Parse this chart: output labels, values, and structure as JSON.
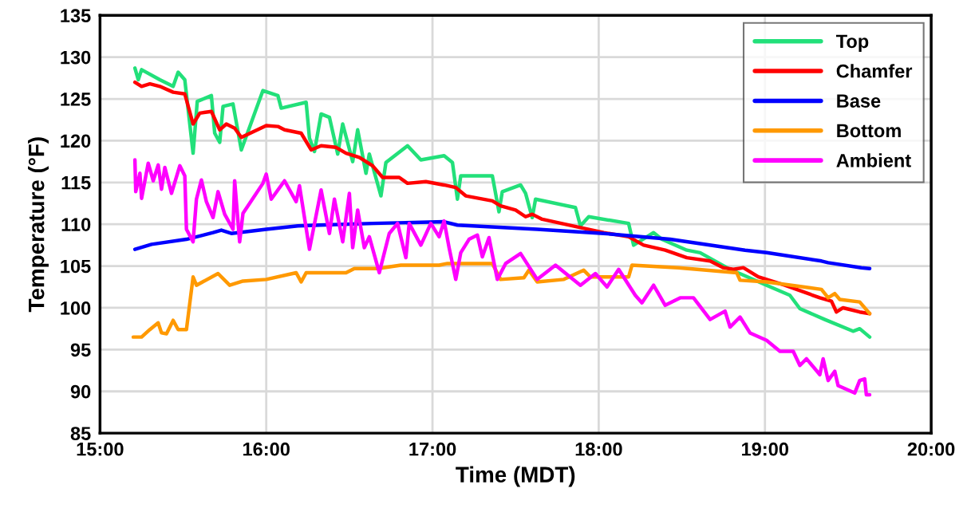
{
  "chart_data": {
    "type": "line",
    "xlabel": "Time (MDT)",
    "ylabel": "Temperature (°F)",
    "xlim": [
      15,
      20
    ],
    "xticks": [
      {
        "value": 15,
        "label": "15:00"
      },
      {
        "value": 16,
        "label": "16:00"
      },
      {
        "value": 17,
        "label": "17:00"
      },
      {
        "value": 18,
        "label": "18:00"
      },
      {
        "value": 19,
        "label": "19:00"
      },
      {
        "value": 20,
        "label": "20:00"
      }
    ],
    "ylim": [
      85,
      135
    ],
    "yticks": [
      85,
      90,
      95,
      100,
      105,
      110,
      115,
      120,
      125,
      130,
      135
    ],
    "grid": true,
    "legend": "top right",
    "marker": "none",
    "line_style": "solid",
    "series": [
      {
        "name": "Top",
        "color": "#22e07a",
        "x": [
          15.21,
          15.23,
          15.25,
          15.36,
          15.44,
          15.47,
          15.51,
          15.56,
          15.585,
          15.67,
          15.69,
          15.72,
          15.74,
          15.8,
          15.85,
          15.98,
          16.07,
          16.09,
          16.24,
          16.26,
          16.29,
          16.33,
          16.38,
          16.43,
          16.46,
          16.52,
          16.55,
          16.6,
          16.62,
          16.69,
          16.72,
          16.85,
          16.93,
          17.07,
          17.12,
          17.15,
          17.17,
          17.36,
          17.4,
          17.42,
          17.53,
          17.56,
          17.6,
          17.62,
          17.86,
          17.89,
          17.94,
          18.18,
          18.21,
          18.33,
          18.38,
          18.53,
          18.61,
          18.78,
          19.01,
          19.15,
          19.21,
          19.36,
          19.53,
          19.57,
          19.63
        ],
        "values": [
          128.7,
          127.3,
          128.5,
          127.3,
          126.5,
          128.2,
          127.3,
          118.5,
          124.7,
          125.4,
          120.9,
          119.8,
          124.1,
          124.4,
          118.9,
          126.0,
          125.4,
          123.9,
          124.6,
          120.3,
          118.7,
          123.2,
          122.8,
          118.4,
          122.0,
          117.5,
          121.3,
          116.1,
          118.4,
          113.4,
          117.4,
          119.4,
          117.7,
          118.2,
          117.4,
          113.0,
          115.8,
          115.8,
          111.5,
          113.9,
          114.7,
          113.7,
          110.8,
          113.0,
          112.0,
          109.8,
          110.9,
          110.1,
          107.5,
          109.0,
          108.2,
          106.9,
          106.6,
          104.7,
          102.7,
          101.5,
          99.9,
          98.6,
          97.2,
          97.5,
          96.5
        ]
      },
      {
        "name": "Chamfer",
        "color": "#ff0000",
        "x": [
          15.21,
          15.25,
          15.3,
          15.36,
          15.44,
          15.51,
          15.56,
          15.6,
          15.67,
          15.72,
          15.76,
          15.81,
          15.85,
          16.0,
          16.07,
          16.11,
          16.21,
          16.27,
          16.33,
          16.42,
          16.48,
          16.56,
          16.64,
          16.7,
          16.8,
          16.85,
          16.96,
          17.07,
          17.14,
          17.2,
          17.36,
          17.41,
          17.5,
          17.56,
          17.6,
          17.66,
          17.89,
          18.03,
          18.18,
          18.27,
          18.4,
          18.53,
          18.67,
          18.75,
          18.81,
          18.87,
          18.96,
          19.12,
          19.33,
          19.4,
          19.43,
          19.47,
          19.57,
          19.63
        ],
        "values": [
          127.0,
          126.5,
          126.8,
          126.5,
          125.8,
          125.6,
          122.0,
          123.3,
          123.5,
          121.3,
          122.0,
          121.5,
          120.4,
          121.8,
          121.7,
          121.3,
          120.9,
          118.9,
          119.4,
          119.2,
          118.5,
          118.0,
          117.0,
          115.6,
          115.6,
          114.9,
          115.1,
          114.7,
          114.4,
          113.4,
          112.8,
          112.2,
          111.7,
          110.9,
          111.2,
          110.6,
          109.6,
          109.0,
          108.5,
          107.5,
          106.9,
          106.0,
          105.6,
          104.8,
          104.6,
          104.8,
          103.7,
          102.7,
          101.2,
          100.8,
          99.5,
          100.0,
          99.5,
          99.3
        ]
      },
      {
        "name": "Base",
        "color": "#0000ff",
        "x": [
          15.21,
          15.31,
          15.52,
          15.68,
          15.73,
          15.79,
          16.0,
          16.19,
          16.32,
          16.64,
          17.07,
          17.15,
          17.63,
          18.03,
          18.43,
          18.88,
          19.01,
          19.34,
          19.38,
          19.58,
          19.63
        ],
        "values": [
          107.0,
          107.6,
          108.2,
          109.0,
          109.3,
          108.9,
          109.4,
          109.8,
          109.9,
          110.1,
          110.3,
          109.9,
          109.4,
          108.9,
          108.2,
          106.9,
          106.6,
          105.6,
          105.4,
          104.8,
          104.7
        ]
      },
      {
        "name": "Bottom",
        "color": "#ff9900",
        "x": [
          15.2,
          15.25,
          15.3,
          15.35,
          15.37,
          15.4,
          15.44,
          15.47,
          15.52,
          15.56,
          15.58,
          15.71,
          15.78,
          15.86,
          16.0,
          16.18,
          16.21,
          16.24,
          16.48,
          16.53,
          16.67,
          16.81,
          17.04,
          17.09,
          17.36,
          17.41,
          17.55,
          17.58,
          17.63,
          17.79,
          17.91,
          17.95,
          18.18,
          18.2,
          18.48,
          18.83,
          18.85,
          19.01,
          19.34,
          19.38,
          19.42,
          19.45,
          19.57,
          19.63
        ],
        "values": [
          96.5,
          96.5,
          97.4,
          98.2,
          97.0,
          96.9,
          98.5,
          97.4,
          97.4,
          103.7,
          102.7,
          104.1,
          102.7,
          103.2,
          103.4,
          104.2,
          103.1,
          104.2,
          104.2,
          104.7,
          104.7,
          105.1,
          105.1,
          105.3,
          105.3,
          103.4,
          103.6,
          104.5,
          103.1,
          103.4,
          104.5,
          103.7,
          103.7,
          105.1,
          104.8,
          104.2,
          103.3,
          103.1,
          102.2,
          101.2,
          101.7,
          101.0,
          100.7,
          99.3
        ]
      },
      {
        "name": "Ambient",
        "color": "#ff00ff",
        "x": [
          15.21,
          15.215,
          15.24,
          15.25,
          15.29,
          15.32,
          15.35,
          15.37,
          15.39,
          15.43,
          15.48,
          15.51,
          15.52,
          15.56,
          15.58,
          15.61,
          15.64,
          15.68,
          15.71,
          15.75,
          15.8,
          15.81,
          15.84,
          15.86,
          15.98,
          16.0,
          16.03,
          16.11,
          16.18,
          16.2,
          16.26,
          16.33,
          16.38,
          16.41,
          16.46,
          16.5,
          16.52,
          16.55,
          16.59,
          16.62,
          16.68,
          16.74,
          16.79,
          16.84,
          16.86,
          16.93,
          16.99,
          17.04,
          17.07,
          17.1,
          17.14,
          17.17,
          17.22,
          17.27,
          17.3,
          17.34,
          17.39,
          17.44,
          17.53,
          17.63,
          17.74,
          17.89,
          17.98,
          18.05,
          18.12,
          18.22,
          18.26,
          18.33,
          18.4,
          18.49,
          18.57,
          18.67,
          18.76,
          18.79,
          18.85,
          18.91,
          19.01,
          19.09,
          19.17,
          19.21,
          19.25,
          19.33,
          19.35,
          19.38,
          19.42,
          19.44,
          19.54,
          19.57,
          19.6,
          19.61,
          19.63
        ],
        "values": [
          117.7,
          113.9,
          116.1,
          113.1,
          117.3,
          115.2,
          117.1,
          114.2,
          116.8,
          113.7,
          117.0,
          115.8,
          109.4,
          107.9,
          113.0,
          115.3,
          112.7,
          110.8,
          113.9,
          111.2,
          109.4,
          115.2,
          107.9,
          111.3,
          114.9,
          116.0,
          113.0,
          115.2,
          112.7,
          114.6,
          107.0,
          114.1,
          108.9,
          113.0,
          107.9,
          113.7,
          107.2,
          111.7,
          107.2,
          108.5,
          104.2,
          108.9,
          110.1,
          106.0,
          110.1,
          107.5,
          110.1,
          108.5,
          110.4,
          107.2,
          103.4,
          106.6,
          108.2,
          108.7,
          106.1,
          108.4,
          103.4,
          105.3,
          106.5,
          103.4,
          105.1,
          102.7,
          104.1,
          102.5,
          104.6,
          101.5,
          100.6,
          102.7,
          100.3,
          101.2,
          101.2,
          98.6,
          99.6,
          97.7,
          98.9,
          97.0,
          96.1,
          94.8,
          94.8,
          93.1,
          93.9,
          92.0,
          93.9,
          91.3,
          92.4,
          90.7,
          89.8,
          91.3,
          91.5,
          89.6,
          89.6
        ]
      }
    ]
  }
}
